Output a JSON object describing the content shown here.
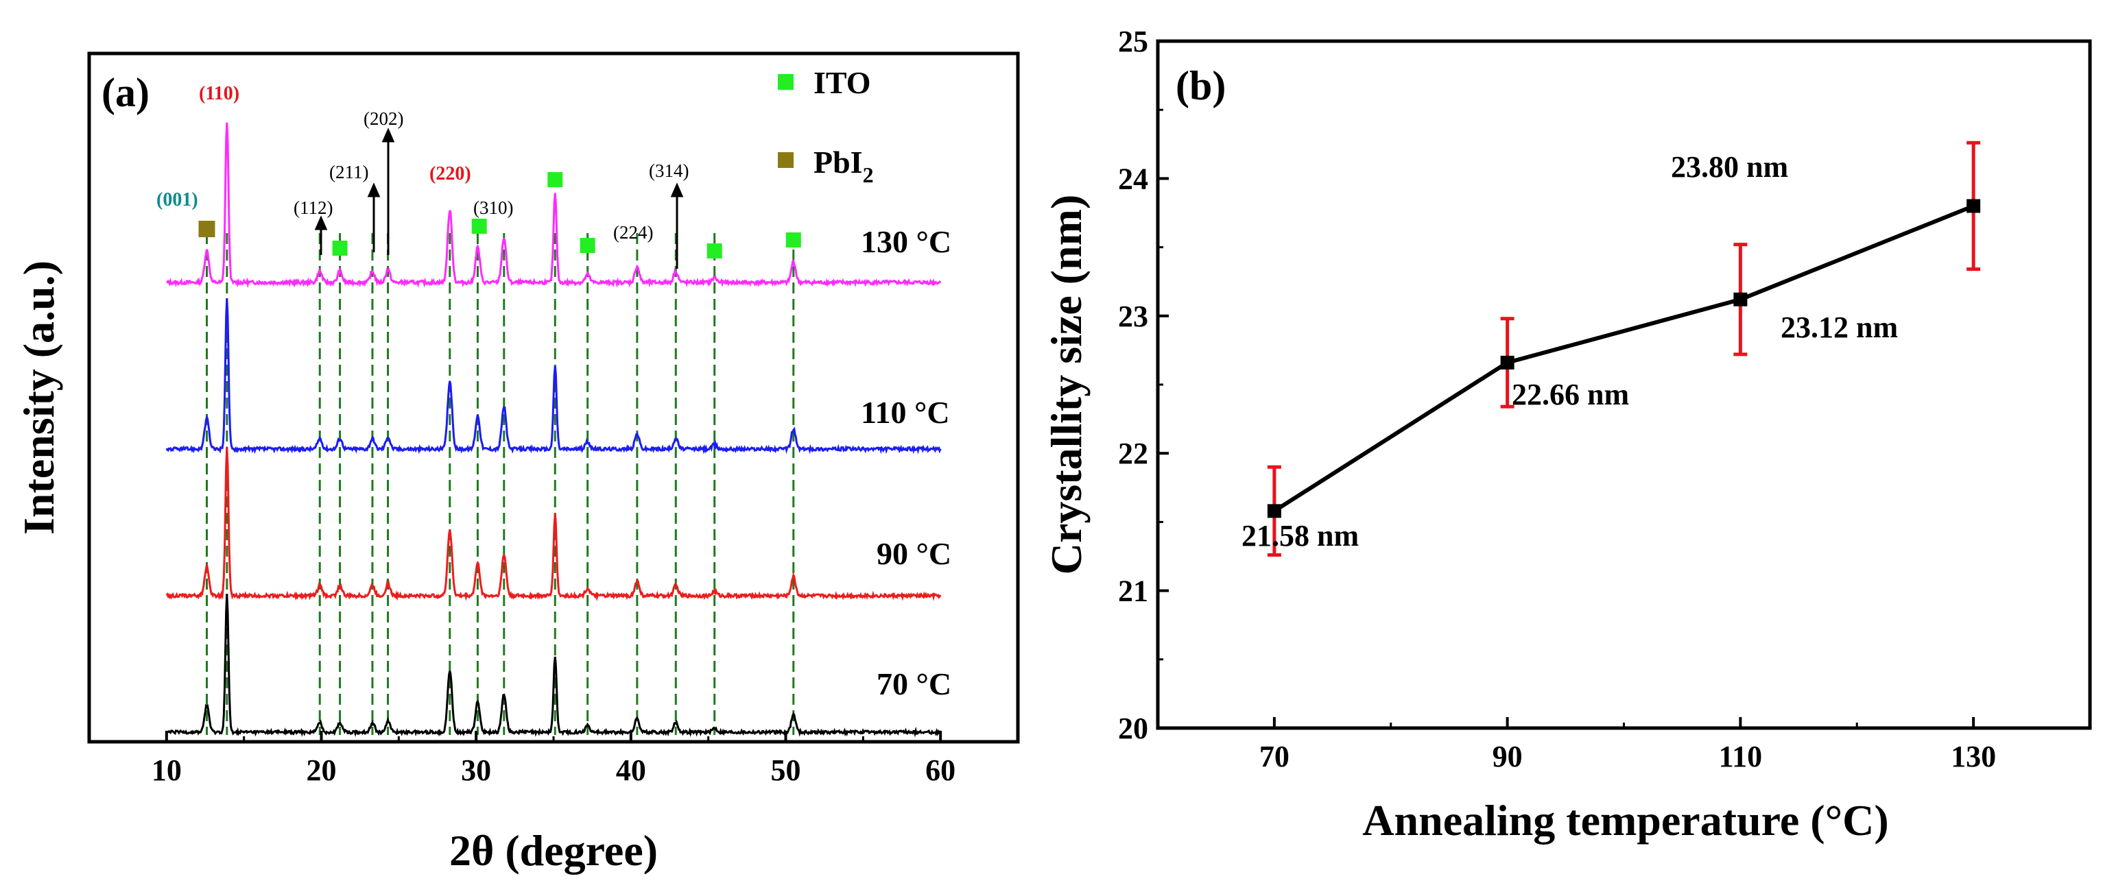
{
  "chart_data": [
    {
      "type": "line",
      "panel_label": "(a)",
      "xlabel": "2θ (degree)",
      "ylabel": "Intensity (a.u.)",
      "xlim": [
        5,
        65
      ],
      "xticks": [
        "10",
        "20",
        "30",
        "40",
        "50",
        "60"
      ],
      "series": [
        {
          "name": "130 °C",
          "label": "130 °C",
          "color": "#ff2bff"
        },
        {
          "name": "110 °C",
          "label": "110 °C",
          "color": "#1c1cf5"
        },
        {
          "name": "90 °C",
          "label": "90 °C",
          "color": "#ee1c1c"
        },
        {
          "name": "70 °C",
          "label": "70 °C",
          "color": "#000000"
        }
      ],
      "peaks": [
        {
          "pos": 12.6,
          "h": 0.2
        },
        {
          "pos": 13.9,
          "h": 1.0
        },
        {
          "pos": 19.9,
          "h": 0.07
        },
        {
          "pos": 21.2,
          "h": 0.07
        },
        {
          "pos": 23.3,
          "h": 0.07
        },
        {
          "pos": 24.3,
          "h": 0.08
        },
        {
          "pos": 28.3,
          "h": 0.45
        },
        {
          "pos": 30.1,
          "h": 0.22
        },
        {
          "pos": 31.8,
          "h": 0.28
        },
        {
          "pos": 35.1,
          "h": 0.55
        },
        {
          "pos": 37.2,
          "h": 0.05
        },
        {
          "pos": 40.4,
          "h": 0.1
        },
        {
          "pos": 42.9,
          "h": 0.07
        },
        {
          "pos": 45.4,
          "h": 0.03
        },
        {
          "pos": 50.5,
          "h": 0.13
        }
      ],
      "dashed_lines": [
        12.6,
        13.9,
        19.9,
        21.2,
        23.3,
        24.3,
        28.3,
        30.1,
        31.8,
        35.1,
        37.2,
        40.4,
        42.9,
        45.4,
        50.5
      ],
      "ito_markers": [
        21.2,
        30.2,
        35.1,
        37.2,
        45.4,
        50.5
      ],
      "pbi2_markers": [
        12.6
      ],
      "peak_labels": {
        "p001": "(001)",
        "p110": "(110)",
        "p112": "(112)",
        "p211": "(211)",
        "p202": "(202)",
        "p220": "(220)",
        "p310": "(310)",
        "p224": "(224)",
        "p314": "(314)"
      },
      "legend": {
        "ito": "ITO",
        "pbi2_main": "PbI",
        "pbi2_sub": "2"
      },
      "colors": {
        "dashed": "#1f7a1f",
        "ito": "#22ee22",
        "pbi2": "#8b7a14"
      }
    },
    {
      "type": "line",
      "panel_label": "(b)",
      "xlabel": "Annealing temperature (°C)",
      "ylabel": "Crystallity size (nm)",
      "xlim": [
        60,
        140
      ],
      "ylim": [
        20,
        25
      ],
      "x": [
        70,
        90,
        110,
        130
      ],
      "y": [
        21.58,
        22.66,
        23.12,
        23.8
      ],
      "err": [
        0.32,
        0.32,
        0.4,
        0.46
      ],
      "xticks": [
        "70",
        "90",
        "110",
        "130"
      ],
      "yticks": [
        "20",
        "21",
        "22",
        "23",
        "24",
        "25"
      ],
      "point_labels": [
        "21.58 nm",
        "22.66 nm",
        "23.12 nm",
        "23.80 nm"
      ],
      "colors": {
        "line": "#000000",
        "errorbar": "#e8131b"
      }
    }
  ]
}
